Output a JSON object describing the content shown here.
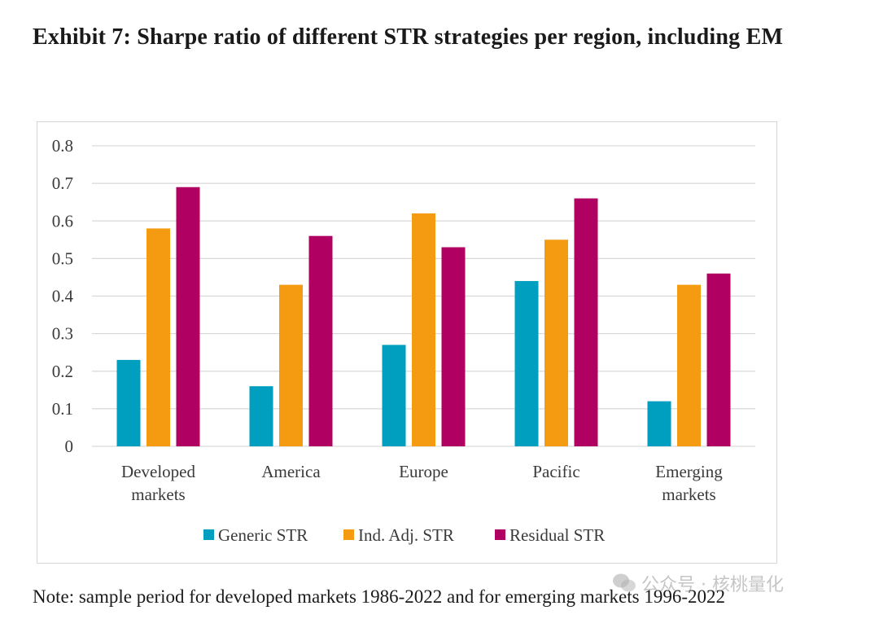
{
  "title": "Exhibit 7: Sharpe ratio of different STR strategies per region, including EM",
  "note": "Note: sample period for developed markets 1986-2022 and for emerging markets 1996-2022",
  "watermark": "公众号 · 核桃量化",
  "colors": {
    "generic": "#009fc0",
    "ind_adj": "#f59b12",
    "residual": "#b00062",
    "grid": "#d9d9d9",
    "frame": "#d6d6d6"
  },
  "chart_data": {
    "type": "bar",
    "title": "",
    "xlabel": "",
    "ylabel": "",
    "ylim": [
      0,
      0.8
    ],
    "yticks": [
      "0",
      "0.1",
      "0.2",
      "0.3",
      "0.4",
      "0.5",
      "0.6",
      "0.7",
      "0.8"
    ],
    "categories": [
      [
        "Developed",
        "markets"
      ],
      [
        "America"
      ],
      [
        "Europe"
      ],
      [
        "Pacific"
      ],
      [
        "Emerging",
        "markets"
      ]
    ],
    "series": [
      {
        "name": "Generic STR",
        "color_key": "generic",
        "values": [
          0.23,
          0.16,
          0.27,
          0.44,
          0.12
        ]
      },
      {
        "name": "Ind. Adj. STR",
        "color_key": "ind_adj",
        "values": [
          0.58,
          0.43,
          0.62,
          0.55,
          0.43
        ]
      },
      {
        "name": "Residual STR",
        "color_key": "residual",
        "values": [
          0.69,
          0.56,
          0.53,
          0.66,
          0.46
        ]
      }
    ],
    "grid": true,
    "legend_position": "bottom"
  }
}
